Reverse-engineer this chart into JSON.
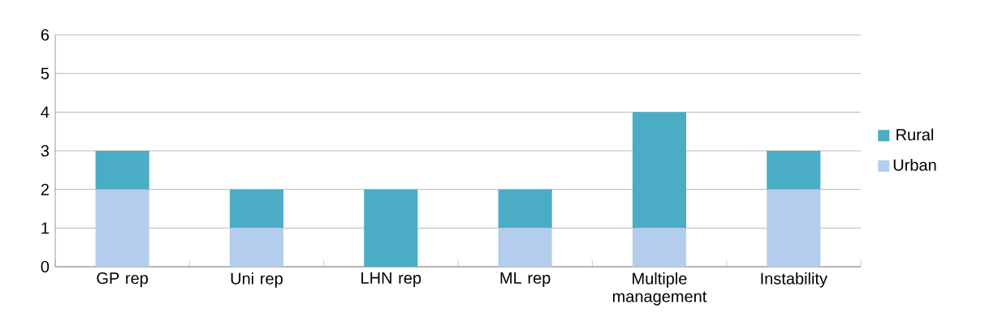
{
  "chart_data": {
    "type": "bar",
    "stacked": true,
    "categories": [
      "GP rep",
      "Uni rep",
      "LHN rep",
      "ML rep",
      "Multiple management",
      "Instability"
    ],
    "series": [
      {
        "name": "Urban",
        "color": "#b4cdec",
        "values": [
          2,
          1,
          0,
          1,
          1,
          2
        ]
      },
      {
        "name": "Rural",
        "color": "#4bacc6",
        "values": [
          1,
          1,
          2,
          1,
          3,
          1
        ]
      }
    ],
    "ylim": [
      0,
      6
    ],
    "yticks": [
      0,
      1,
      2,
      3,
      4,
      5,
      6
    ],
    "grid": "y",
    "legend": "right"
  }
}
